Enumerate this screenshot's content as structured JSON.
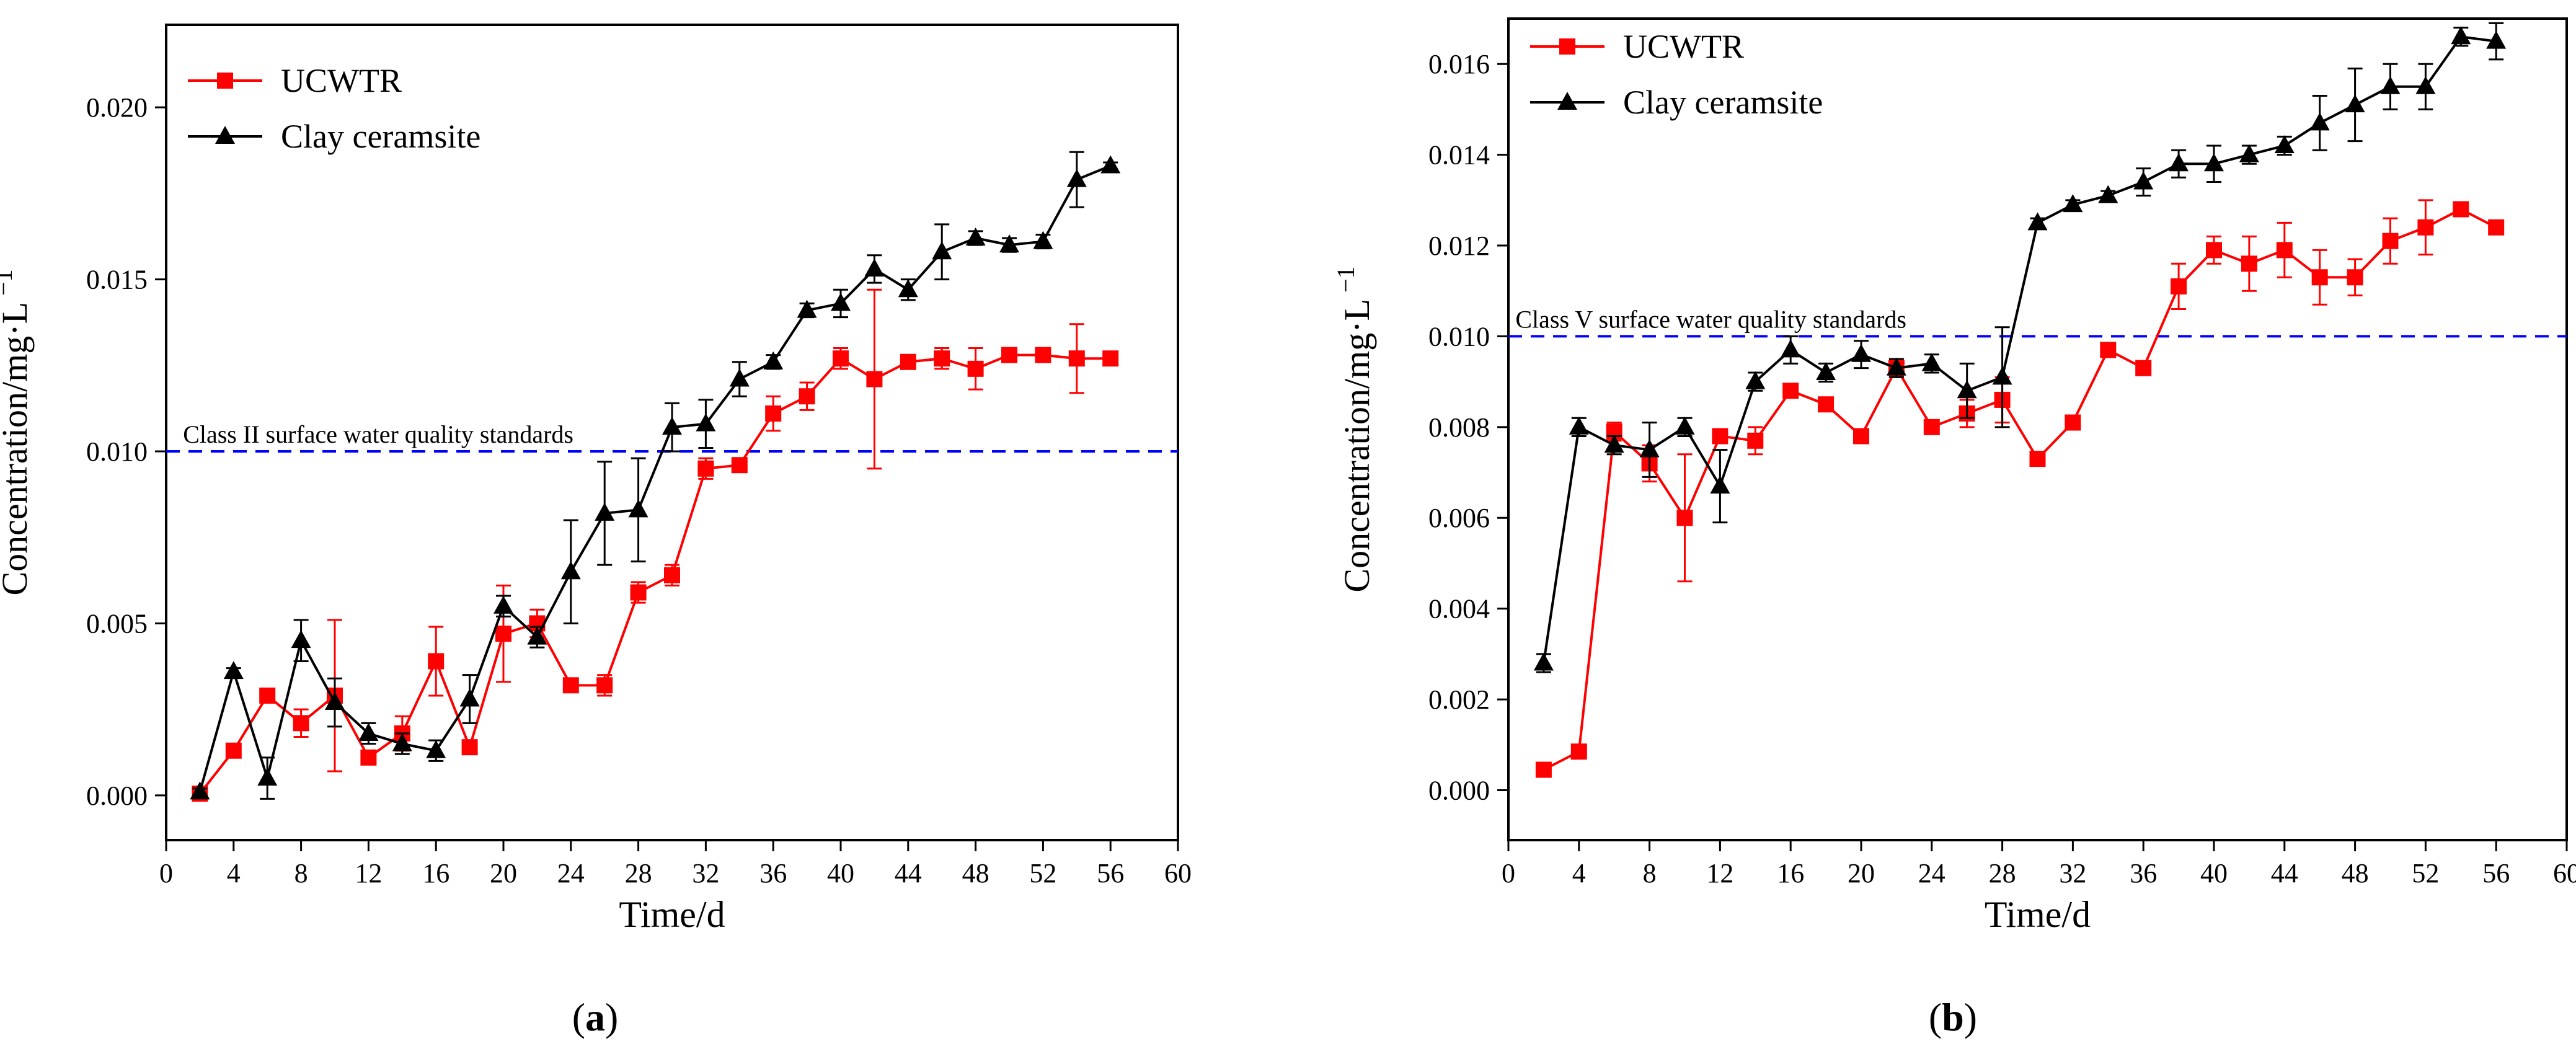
{
  "colors": {
    "ucwtr": "#ff0000",
    "clay": "#000000",
    "standard": "#0000ff",
    "axis": "#000000"
  },
  "chart_data": [
    {
      "type": "line",
      "panel_label": "(a)",
      "panel_letter": "a",
      "xlabel": "Time/d",
      "ylabel": "Concentration/mg·L",
      "ylabel_sup": "−1",
      "xlim": [
        0,
        60
      ],
      "ylim": [
        -0.0013,
        0.0224
      ],
      "x_ticks": [
        0,
        4,
        8,
        12,
        16,
        20,
        24,
        28,
        32,
        36,
        40,
        44,
        48,
        52,
        56,
        60
      ],
      "x_tick_labels": [
        "0",
        "4",
        "8",
        "12",
        "16",
        "20",
        "24",
        "28",
        "32",
        "36",
        "40",
        "44",
        "48",
        "52",
        "56",
        "60"
      ],
      "y_ticks": [
        0,
        0.005,
        0.01,
        0.015,
        0.02
      ],
      "y_tick_labels": [
        "0.000",
        "0.005",
        "0.010",
        "0.015",
        "0.020"
      ],
      "standard_line": {
        "value": 0.01,
        "label": "Class II surface water quality standards"
      },
      "legend": [
        "UCWTR",
        "Clay ceramsite"
      ],
      "series": [
        {
          "name": "UCWTR",
          "color": "#ff0000",
          "marker": "square",
          "x": [
            2,
            4,
            6,
            8,
            10,
            12,
            14,
            16,
            18,
            20,
            22,
            24,
            26,
            28,
            30,
            32,
            34,
            36,
            38,
            40,
            42,
            44,
            46,
            48,
            50,
            52,
            54,
            56
          ],
          "y": [
            5e-05,
            0.0013,
            0.0029,
            0.0021,
            0.0029,
            0.0011,
            0.0018,
            0.0039,
            0.0014,
            0.0047,
            0.005,
            0.0032,
            0.0032,
            0.0059,
            0.0064,
            0.0095,
            0.0096,
            0.0111,
            0.0116,
            0.0127,
            0.0121,
            0.0126,
            0.0127,
            0.0124,
            0.0128,
            0.0128,
            0.0127,
            0.0127
          ],
          "err": [
            0.0002,
            0.0002,
            0.0002,
            0.0004,
            0.0022,
            0.0002,
            0.0005,
            0.001,
            0.0002,
            0.0014,
            0.0004,
            0.0002,
            0.0003,
            0.0003,
            0.0003,
            0.0003,
            0.0002,
            0.0005,
            0.0004,
            0.0003,
            0.0026,
            0.0002,
            0.0003,
            0.0006,
            0.0002,
            0.0002,
            0.001,
            0.0002
          ]
        },
        {
          "name": "Clay ceramsite",
          "color": "#000000",
          "marker": "triangle",
          "x": [
            2,
            4,
            6,
            8,
            10,
            12,
            14,
            16,
            18,
            20,
            22,
            24,
            26,
            28,
            30,
            32,
            34,
            36,
            38,
            40,
            42,
            44,
            46,
            48,
            50,
            52,
            54,
            56
          ],
          "y": [
            0.0001,
            0.0036,
            0.0005,
            0.0045,
            0.0027,
            0.0018,
            0.0015,
            0.0013,
            0.0028,
            0.0055,
            0.0046,
            0.0065,
            0.0082,
            0.0083,
            0.0107,
            0.0108,
            0.0121,
            0.0126,
            0.0141,
            0.0143,
            0.0153,
            0.0147,
            0.0158,
            0.0162,
            0.016,
            0.0161,
            0.0179,
            0.0183
          ],
          "err": [
            0.0001,
            0.0001,
            0.0006,
            0.0006,
            0.0007,
            0.0003,
            0.0003,
            0.0003,
            0.0007,
            0.0003,
            0.0003,
            0.0015,
            0.0015,
            0.0015,
            0.0007,
            0.0007,
            0.0005,
            0.0002,
            0.0002,
            0.0004,
            0.0004,
            0.0003,
            0.0008,
            0.0002,
            0.0002,
            0.0002,
            0.0008,
            0.0001
          ]
        }
      ]
    },
    {
      "type": "line",
      "panel_label": "(b)",
      "panel_letter": "b",
      "xlabel": "Time/d",
      "ylabel": "Concentration/mg·L",
      "ylabel_sup": "−1",
      "xlim": [
        0,
        60
      ],
      "ylim": [
        -0.0011,
        0.017
      ],
      "x_ticks": [
        0,
        4,
        8,
        12,
        16,
        20,
        24,
        28,
        32,
        36,
        40,
        44,
        48,
        52,
        56,
        60
      ],
      "x_tick_labels": [
        "0",
        "4",
        "8",
        "12",
        "16",
        "20",
        "24",
        "28",
        "32",
        "36",
        "40",
        "44",
        "48",
        "52",
        "56",
        "60"
      ],
      "y_ticks": [
        0,
        0.002,
        0.004,
        0.006,
        0.008,
        0.01,
        0.012,
        0.014,
        0.016
      ],
      "y_tick_labels": [
        "0.000",
        "0.002",
        "0.004",
        "0.006",
        "0.008",
        "0.010",
        "0.012",
        "0.014",
        "0.016"
      ],
      "standard_line": {
        "value": 0.01,
        "label": "Class V surface water quality standards"
      },
      "legend": [
        "UCWTR",
        "Clay ceramsite"
      ],
      "series": [
        {
          "name": "UCWTR",
          "color": "#ff0000",
          "marker": "square",
          "x": [
            2,
            4,
            6,
            8,
            10,
            12,
            14,
            16,
            18,
            20,
            22,
            24,
            26,
            28,
            30,
            32,
            34,
            36,
            38,
            40,
            42,
            44,
            46,
            48,
            50,
            52,
            54,
            56
          ],
          "y": [
            0.00045,
            0.00085,
            0.0079,
            0.0072,
            0.006,
            0.0078,
            0.0077,
            0.0088,
            0.0085,
            0.0078,
            0.0093,
            0.008,
            0.0083,
            0.0086,
            0.0073,
            0.0081,
            0.0097,
            0.0093,
            0.0111,
            0.0119,
            0.0116,
            0.0119,
            0.0113,
            0.0113,
            0.0121,
            0.0124,
            0.0128,
            0.0124
          ],
          "err": [
            0.0001,
            0.0001,
            0.0002,
            0.0004,
            0.0014,
            0.0001,
            0.0003,
            0.0001,
            0.0001,
            0.0001,
            0.0001,
            0.0001,
            0.0003,
            0.0005,
            0.0001,
            0.0001,
            0.0001,
            0.0001,
            0.0005,
            0.0003,
            0.0006,
            0.0006,
            0.0006,
            0.0004,
            0.0005,
            0.0006,
            0.0001,
            0.0001
          ]
        },
        {
          "name": "Clay ceramsite",
          "color": "#000000",
          "marker": "triangle",
          "x": [
            2,
            4,
            6,
            8,
            10,
            12,
            14,
            16,
            18,
            20,
            22,
            24,
            26,
            28,
            30,
            32,
            34,
            36,
            38,
            40,
            42,
            44,
            46,
            48,
            50,
            52,
            54,
            56
          ],
          "y": [
            0.0028,
            0.008,
            0.0076,
            0.0075,
            0.008,
            0.0067,
            0.009,
            0.0097,
            0.0092,
            0.0096,
            0.0093,
            0.0094,
            0.0088,
            0.0091,
            0.0125,
            0.0129,
            0.0131,
            0.0134,
            0.0138,
            0.0138,
            0.014,
            0.0142,
            0.0147,
            0.0151,
            0.0155,
            0.0155,
            0.0166,
            0.0165
          ],
          "err": [
            0.0002,
            0.0002,
            0.0002,
            0.0006,
            0.0002,
            0.0008,
            0.0002,
            0.0003,
            0.0002,
            0.0003,
            0.0002,
            0.0002,
            0.0006,
            0.0011,
            0.0001,
            0.0001,
            0.0001,
            0.0003,
            0.0003,
            0.0004,
            0.0002,
            0.0002,
            0.0006,
            0.0008,
            0.0005,
            0.0005,
            0.0002,
            0.0004
          ]
        }
      ]
    }
  ]
}
